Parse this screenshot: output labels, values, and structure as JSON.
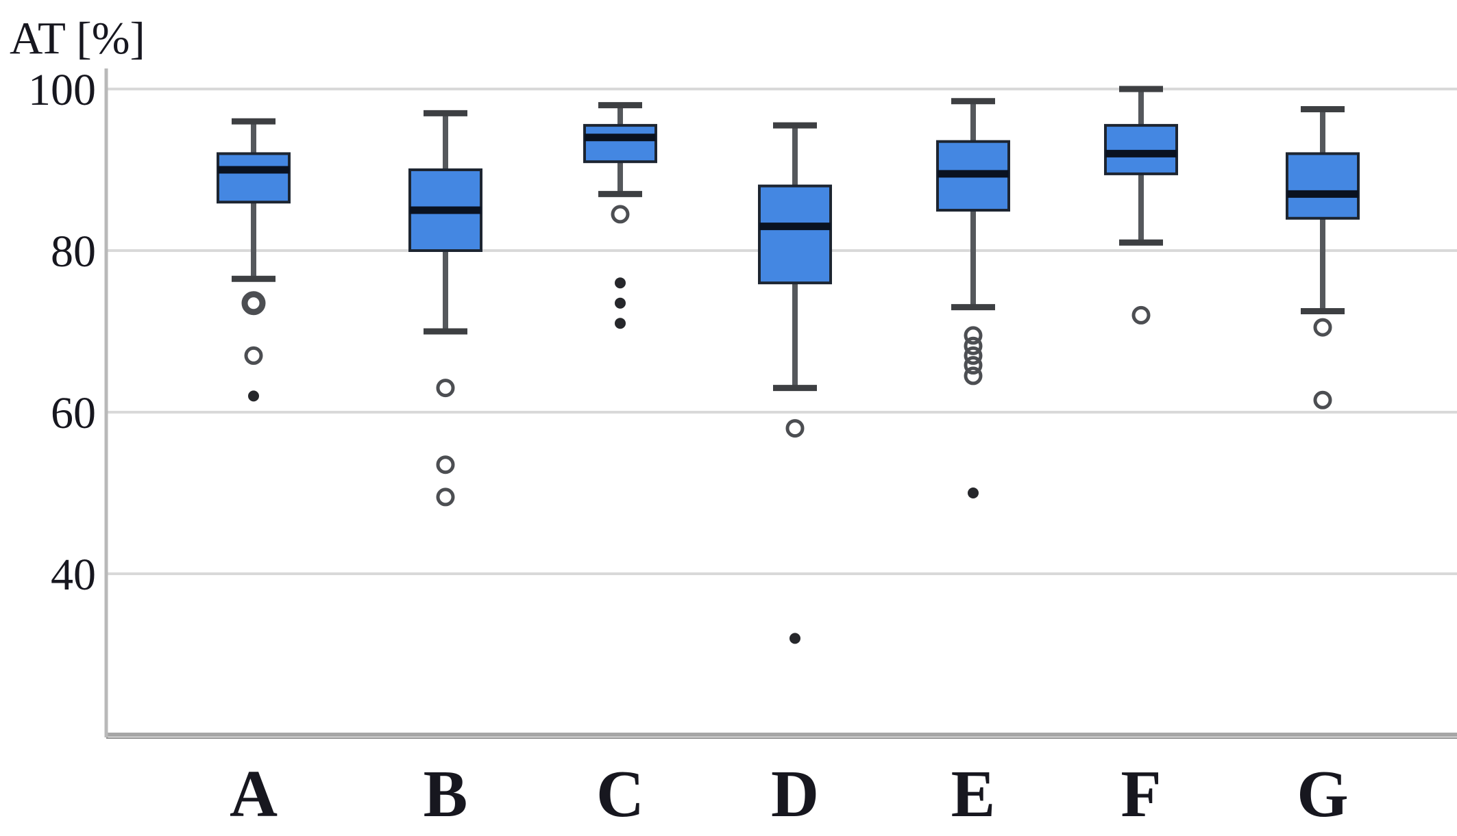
{
  "chart_data": {
    "type": "box",
    "title": "",
    "ylabel": "AT [%]",
    "xlabel": "",
    "yticks": [
      100,
      80,
      60,
      40
    ],
    "ylim_visible": [
      20,
      100
    ],
    "grid": true,
    "legend": "none",
    "categories": [
      "A",
      "B",
      "C",
      "D",
      "E",
      "F",
      "G"
    ],
    "series": [
      {
        "name": "A",
        "low": 76.5,
        "q1": 86,
        "median": 90,
        "q3": 92,
        "high": 96,
        "outliers_bold": [
          73.5
        ],
        "outliers_open": [
          67
        ],
        "outliers_filled": [
          62
        ]
      },
      {
        "name": "B",
        "low": 70,
        "q1": 80,
        "median": 85,
        "q3": 90,
        "high": 97,
        "outliers_bold": [],
        "outliers_open": [
          63,
          53.5,
          49.5
        ],
        "outliers_filled": []
      },
      {
        "name": "C",
        "low": 87,
        "q1": 91,
        "median": 94,
        "q3": 95.5,
        "high": 98,
        "outliers_bold": [],
        "outliers_open": [
          84.5
        ],
        "outliers_filled": [
          76,
          73.5,
          71
        ]
      },
      {
        "name": "D",
        "low": 63,
        "q1": 76,
        "median": 83,
        "q3": 88,
        "high": 95.5,
        "outliers_bold": [],
        "outliers_open": [
          58
        ],
        "outliers_filled": [
          32
        ]
      },
      {
        "name": "E",
        "low": 73,
        "q1": 85,
        "median": 89.5,
        "q3": 93.5,
        "high": 98.5,
        "outliers_bold": [],
        "outliers_open": [
          69.5,
          68.2,
          67,
          65.8,
          64.5
        ],
        "outliers_filled": [
          50
        ]
      },
      {
        "name": "F",
        "low": 81,
        "q1": 89.5,
        "median": 92,
        "q3": 95.5,
        "high": 100,
        "outliers_bold": [],
        "outliers_open": [
          72
        ],
        "outliers_filled": []
      },
      {
        "name": "G",
        "low": 72.5,
        "q1": 84,
        "median": 87,
        "q3": 92,
        "high": 97.5,
        "outliers_bold": [],
        "outliers_open": [
          70.5,
          61.5
        ],
        "outliers_filled": []
      }
    ],
    "colors": {
      "box_fill": "#4487e2",
      "box_border": "#1d2531",
      "median": "#0a1220",
      "whisker": "#55585c",
      "whisker_cap": "#3d3f42",
      "gridline": "#d9d9d9",
      "axis_line": "#b9b9b9",
      "bottom_border": "#a6a6a6",
      "bottom_border_dark": "#8f8f8f",
      "outlier_ring": "#4c4e52",
      "outlier_dot": "#26272b",
      "text": "#17171f"
    }
  }
}
